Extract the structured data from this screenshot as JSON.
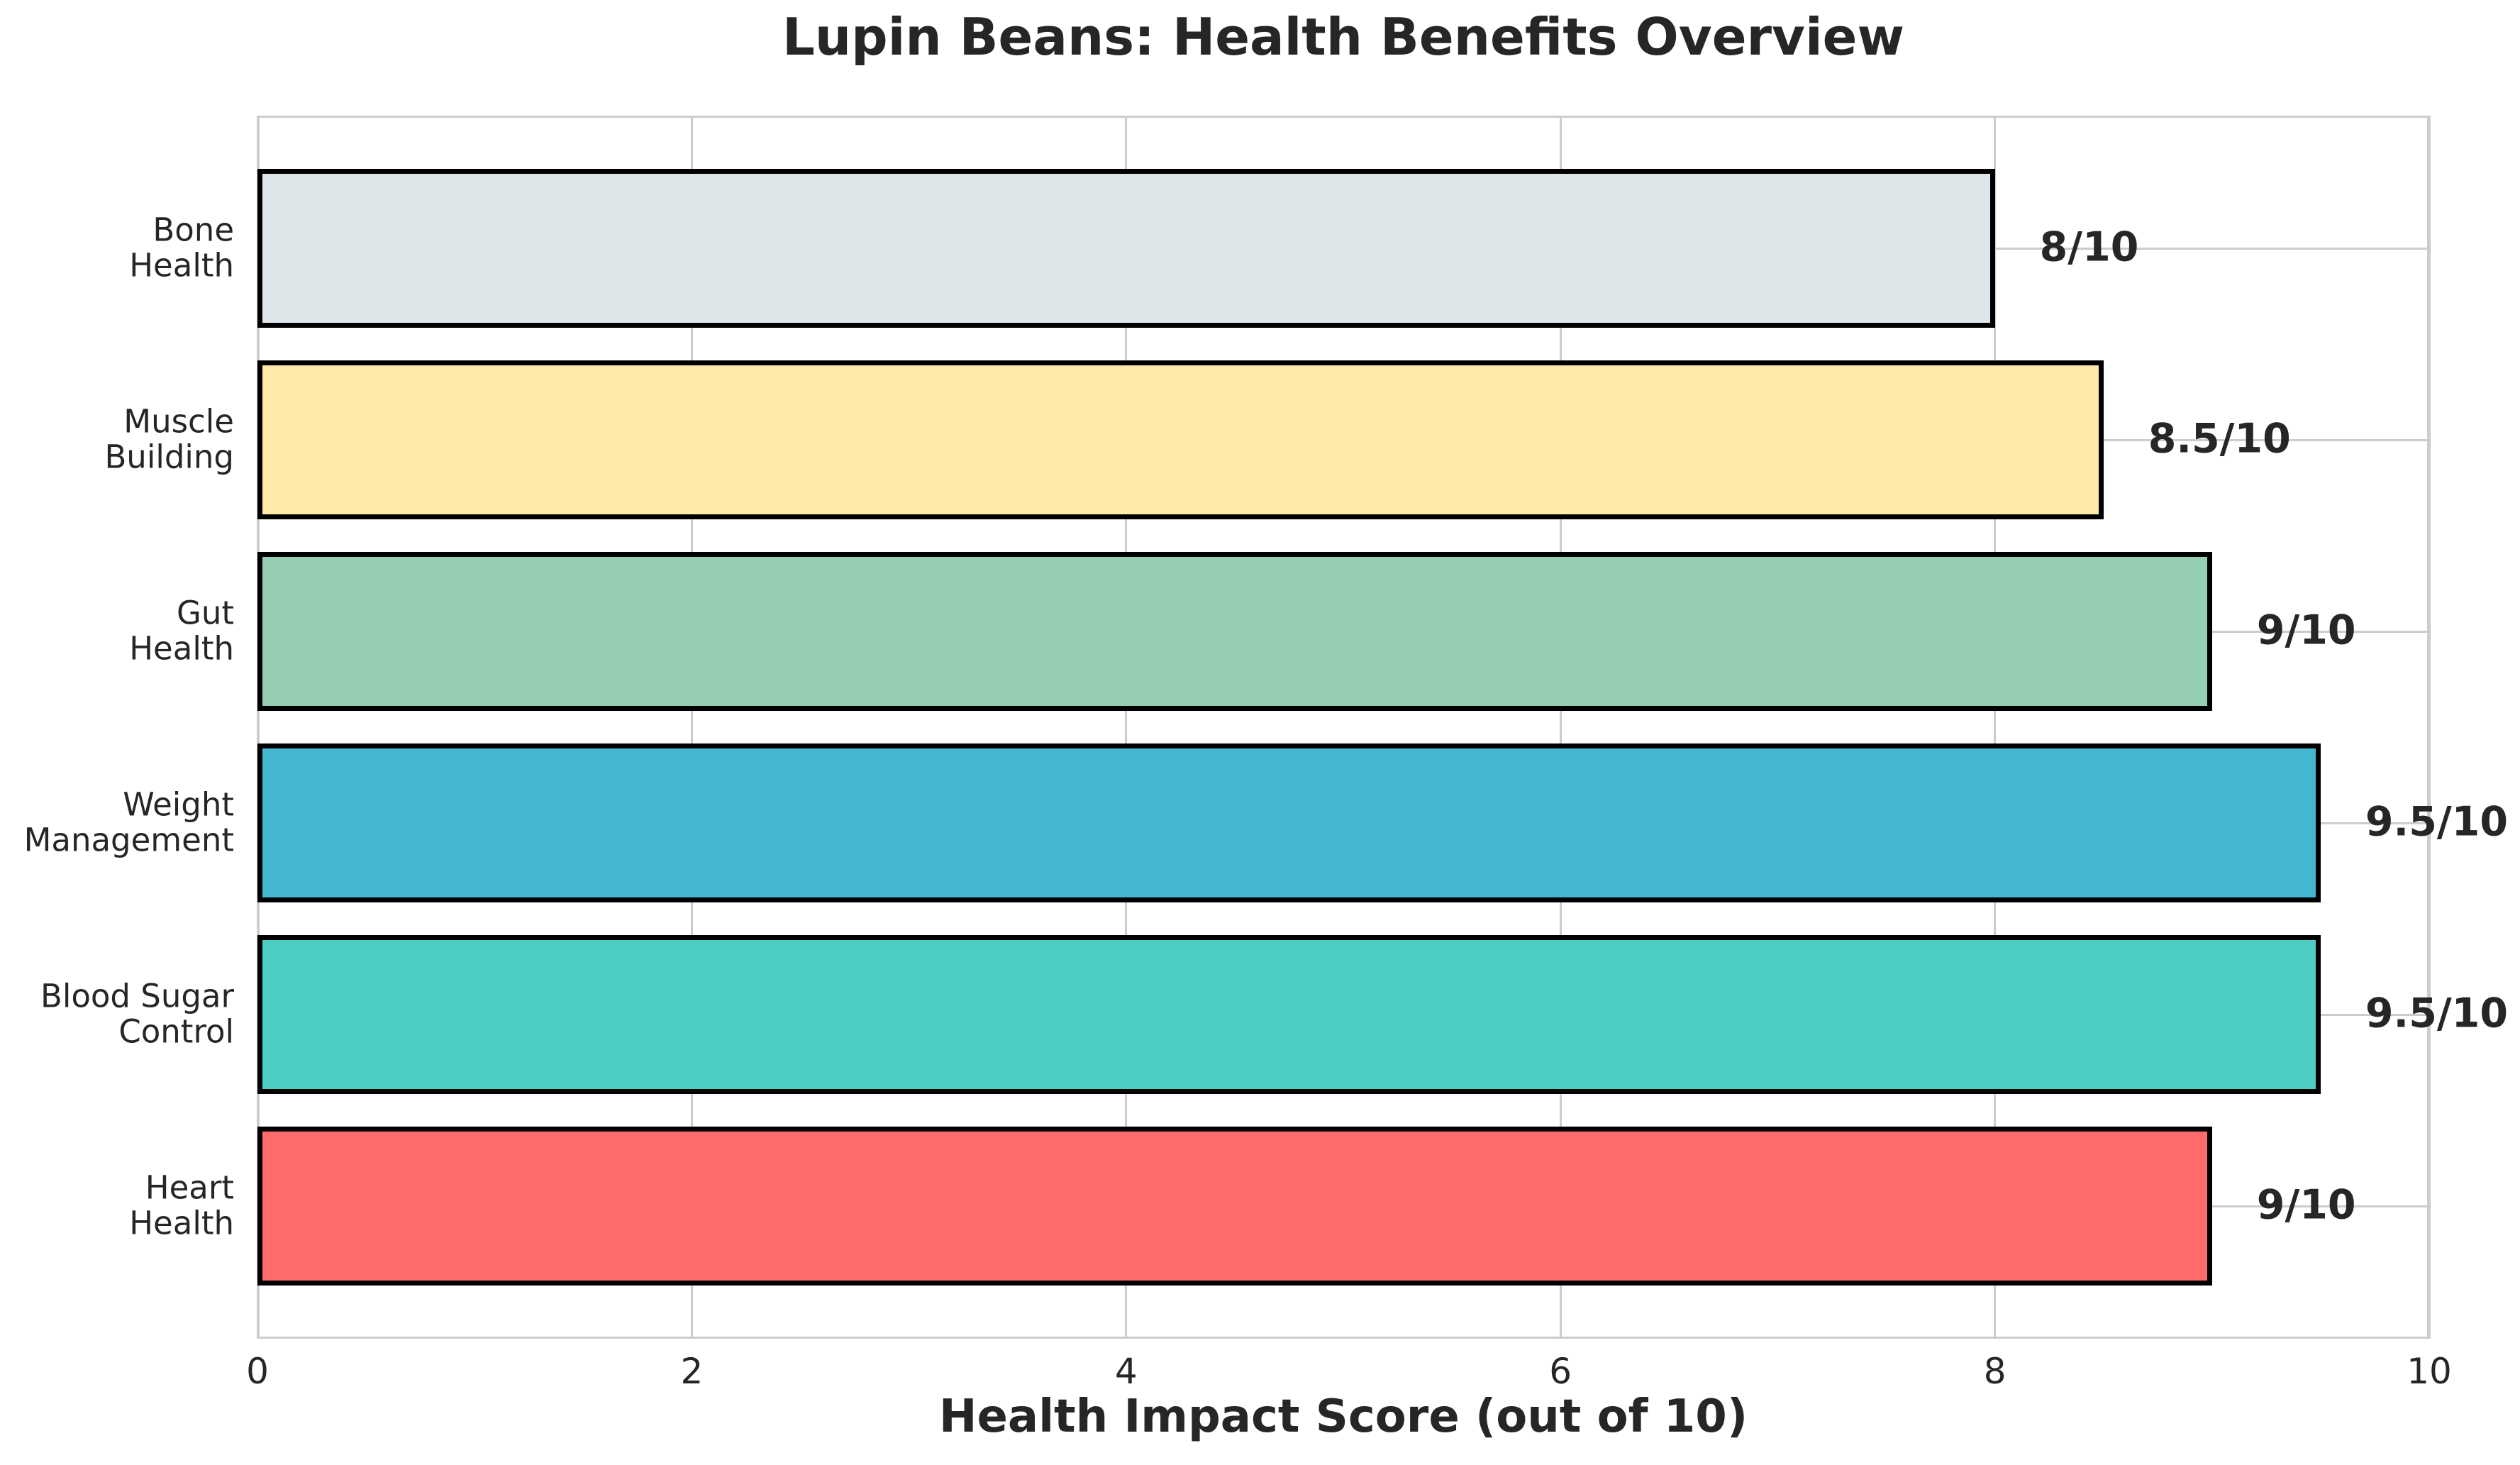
{
  "chart_data": {
    "type": "bar",
    "orientation": "horizontal",
    "title": "Lupin Beans: Health Benefits Overview",
    "xlabel": "Health Impact Score (out of 10)",
    "ylabel": "",
    "categories": [
      [
        "Bone",
        "Health"
      ],
      [
        "Muscle",
        "Building"
      ],
      [
        "Gut",
        "Health"
      ],
      [
        "Weight",
        "Management"
      ],
      [
        "Blood Sugar",
        "Control"
      ],
      [
        "Heart",
        "Health"
      ]
    ],
    "values": [
      8,
      8.5,
      9,
      9.5,
      9.5,
      9
    ],
    "value_labels": [
      "8/10",
      "8.5/10",
      "9/10",
      "9.5/10",
      "9.5/10",
      "9/10"
    ],
    "bar_colors": [
      "#DFE6E9",
      "#FFEAA7",
      "#96CEB4",
      "#45B7D1",
      "#4ECDC4",
      "#FF6B6B"
    ],
    "bar_edge_color": "#000000",
    "xlim": [
      0,
      10
    ],
    "xticks": [
      "0",
      "2",
      "4",
      "6",
      "8",
      "10"
    ],
    "grid": true,
    "grid_color": "#cccccc",
    "spine_color": "#cccccc",
    "text_color": "#262626",
    "background_color": "#ffffff",
    "legend": "none"
  }
}
